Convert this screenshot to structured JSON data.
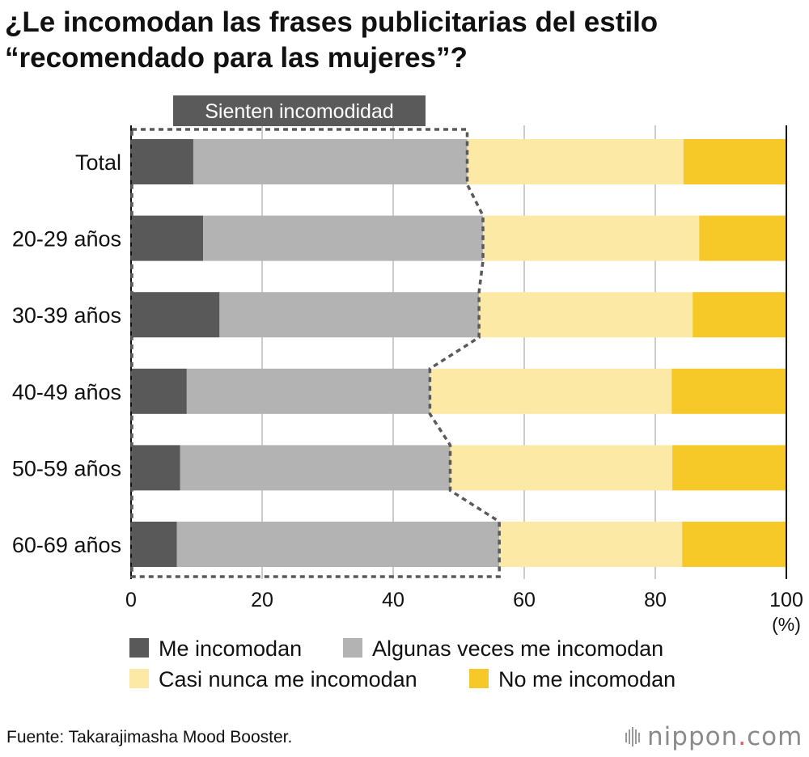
{
  "title_lines": [
    "¿Le incomodan las frases publicitarias del estilo",
    "“recomendado para las mujeres”?"
  ],
  "colors": {
    "me_incomodan": "#595959",
    "algunas_veces": "#b3b3b3",
    "casi_nunca": "#fde9a6",
    "no_me_incomodan": "#f7c928",
    "gridline": "#cccccc",
    "axis": "#111111",
    "dotted_outline": "#5a5a5a",
    "highlight_label_bg": "#5a5a5a",
    "highlight_label_text": "#ffffff"
  },
  "chart_data": {
    "type": "bar",
    "orientation": "horizontal",
    "stacked": true,
    "categories": [
      "Total",
      "20-29 años",
      "30-39 años",
      "40-49 años",
      "50-59 años",
      "60-69 años"
    ],
    "series": [
      {
        "name": "Me incomodan",
        "values": [
          9.5,
          11.0,
          13.5,
          8.5,
          7.5,
          7.0
        ]
      },
      {
        "name": "Algunas veces me incomodan",
        "values": [
          41.8,
          42.7,
          39.6,
          37.1,
          41.2,
          49.2
        ]
      },
      {
        "name": "Casi nunca me incomodan",
        "values": [
          33.0,
          33.0,
          32.6,
          36.9,
          33.9,
          27.9
        ]
      },
      {
        "name": "No me incomodan",
        "values": [
          15.7,
          13.3,
          14.3,
          17.5,
          17.4,
          15.9
        ]
      }
    ],
    "xlim": [
      0,
      100
    ],
    "xticks": [
      0,
      20,
      40,
      60,
      80,
      100
    ],
    "xunit": "(%)",
    "grid": true,
    "legend_position": "bottom",
    "highlight_label": "Sienten incomodidad"
  },
  "source": "Fuente: Takarajimasha Mood Booster.",
  "logo": {
    "main": "nippon",
    "dot": ".",
    "tld": "com"
  }
}
